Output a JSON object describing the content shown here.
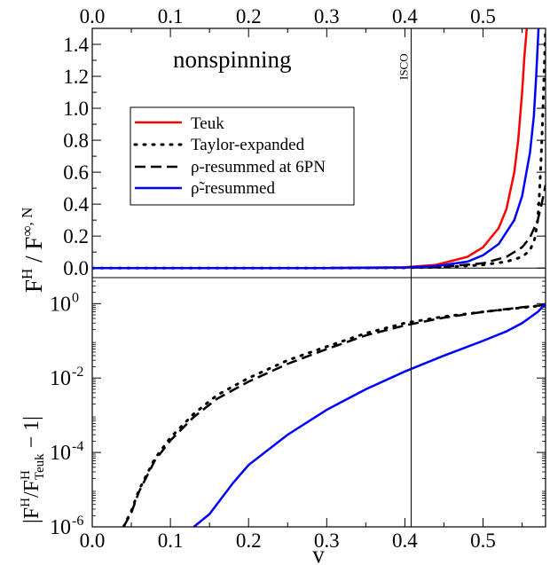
{
  "chart_data": [
    {
      "type": "line",
      "panel": "top",
      "annotation": "nonspinning",
      "vline_label": "ISCO",
      "vline_x": 0.408,
      "ylabel_main": "F",
      "ylabel_sup1": "H",
      "ylabel_mid": " / F",
      "ylabel_sup2": "∞, N",
      "xlim": [
        0.0,
        0.58
      ],
      "ylim": [
        -0.06,
        1.5
      ],
      "x_ticks": [
        "0.0",
        "0.1",
        "0.2",
        "0.3",
        "0.4",
        "0.5"
      ],
      "x_tick_values": [
        0.0,
        0.1,
        0.2,
        0.3,
        0.4,
        0.5
      ],
      "y_ticks": [
        "0.0",
        "0.2",
        "0.4",
        "0.6",
        "0.8",
        "1.0",
        "1.2",
        "1.4"
      ],
      "y_tick_values": [
        0.0,
        0.2,
        0.4,
        0.6,
        0.8,
        1.0,
        1.2,
        1.4
      ],
      "legend_placement": "center-left",
      "series": [
        {
          "name": "Teuk",
          "color": "#ff0000",
          "style": "solid",
          "x": [
            0.0,
            0.1,
            0.2,
            0.3,
            0.4,
            0.44,
            0.48,
            0.5,
            0.52,
            0.53,
            0.54,
            0.545,
            0.55,
            0.553,
            0.556
          ],
          "y": [
            0.0,
            0.0,
            0.0,
            0.0,
            0.005,
            0.02,
            0.07,
            0.13,
            0.25,
            0.37,
            0.6,
            0.8,
            1.1,
            1.33,
            1.5
          ]
        },
        {
          "name": "Taylor-expanded",
          "color": "#000000",
          "style": "dotted",
          "x": [
            0.0,
            0.1,
            0.2,
            0.3,
            0.4,
            0.45,
            0.5,
            0.53,
            0.55,
            0.56,
            0.566,
            0.57,
            0.572,
            0.574,
            0.576,
            0.578,
            0.58
          ],
          "y": [
            0.0,
            0.0,
            0.0,
            0.0,
            0.002,
            0.005,
            0.02,
            0.04,
            0.07,
            0.11,
            0.18,
            0.3,
            0.45,
            0.65,
            0.9,
            1.2,
            1.5
          ]
        },
        {
          "name": "ρ-resummed at 6PN",
          "color": "#000000",
          "style": "dashed",
          "x": [
            0.0,
            0.1,
            0.2,
            0.3,
            0.4,
            0.45,
            0.5,
            0.53,
            0.55,
            0.56,
            0.57,
            0.575,
            0.58
          ],
          "y": [
            0.0,
            0.0,
            0.0,
            0.0,
            0.002,
            0.008,
            0.03,
            0.07,
            0.13,
            0.19,
            0.3,
            0.4,
            0.52
          ]
        },
        {
          "name": "ρ̃-resummed",
          "color": "#0000ff",
          "style": "solid",
          "x": [
            0.0,
            0.1,
            0.2,
            0.3,
            0.4,
            0.44,
            0.48,
            0.5,
            0.52,
            0.54,
            0.55,
            0.56,
            0.565,
            0.568,
            0.571
          ],
          "y": [
            0.0,
            0.0,
            0.0,
            0.0,
            0.003,
            0.012,
            0.04,
            0.08,
            0.15,
            0.3,
            0.45,
            0.72,
            0.95,
            1.2,
            1.5
          ]
        }
      ]
    },
    {
      "type": "line",
      "panel": "bottom",
      "y_scale": "log",
      "xlabel": "v",
      "ylabel_pre": "|F",
      "ylabel_sup1": "H",
      "ylabel_slash": "/F",
      "ylabel_sup2": "H",
      "ylabel_sub2": "Teuk",
      "ylabel_post": " − 1|",
      "xlim": [
        0.0,
        0.58
      ],
      "ylim": [
        1e-06,
        5
      ],
      "x_ticks": [
        "0.0",
        "0.1",
        "0.2",
        "0.3",
        "0.4",
        "0.5"
      ],
      "x_tick_values": [
        0.0,
        0.1,
        0.2,
        0.3,
        0.4,
        0.5
      ],
      "y_tick_labels": [
        {
          "base": "10",
          "exp": "0",
          "value": 1
        },
        {
          "base": "10",
          "exp": "-2",
          "value": 0.01
        },
        {
          "base": "10",
          "exp": "-4",
          "value": 0.0001
        },
        {
          "base": "10",
          "exp": "-6",
          "value": 1e-06
        }
      ],
      "series": [
        {
          "name": "Taylor-expanded",
          "color": "#000000",
          "style": "dotted",
          "x": [
            0.04,
            0.05,
            0.06,
            0.08,
            0.1,
            0.13,
            0.16,
            0.2,
            0.25,
            0.3,
            0.35,
            0.4,
            0.45,
            0.5,
            0.55,
            0.58
          ],
          "y": [
            1e-06,
            2.7e-06,
            1e-05,
            6.8e-05,
            0.00025,
            0.0011,
            0.0035,
            0.01,
            0.03,
            0.07,
            0.16,
            0.3,
            0.45,
            0.6,
            0.78,
            0.9
          ]
        },
        {
          "name": "ρ-resummed at 6PN",
          "color": "#000000",
          "style": "dashed",
          "x": [
            0.04,
            0.05,
            0.06,
            0.08,
            0.1,
            0.13,
            0.16,
            0.2,
            0.25,
            0.3,
            0.35,
            0.4,
            0.45,
            0.5,
            0.55,
            0.58
          ],
          "y": [
            1e-06,
            2.4e-06,
            9e-06,
            6e-05,
            0.00021,
            0.0009,
            0.0028,
            0.008,
            0.024,
            0.06,
            0.14,
            0.26,
            0.42,
            0.6,
            0.8,
            0.92
          ]
        },
        {
          "name": "ρ̃-resummed",
          "color": "#0000ff",
          "style": "solid",
          "x": [
            0.13,
            0.15,
            0.18,
            0.2,
            0.25,
            0.3,
            0.35,
            0.4,
            0.45,
            0.5,
            0.53,
            0.55,
            0.57,
            0.58
          ],
          "y": [
            1e-06,
            2.2e-06,
            1.5e-05,
            4.6e-05,
            0.0003,
            0.0014,
            0.005,
            0.015,
            0.04,
            0.1,
            0.18,
            0.3,
            0.6,
            1.0
          ]
        }
      ]
    }
  ]
}
